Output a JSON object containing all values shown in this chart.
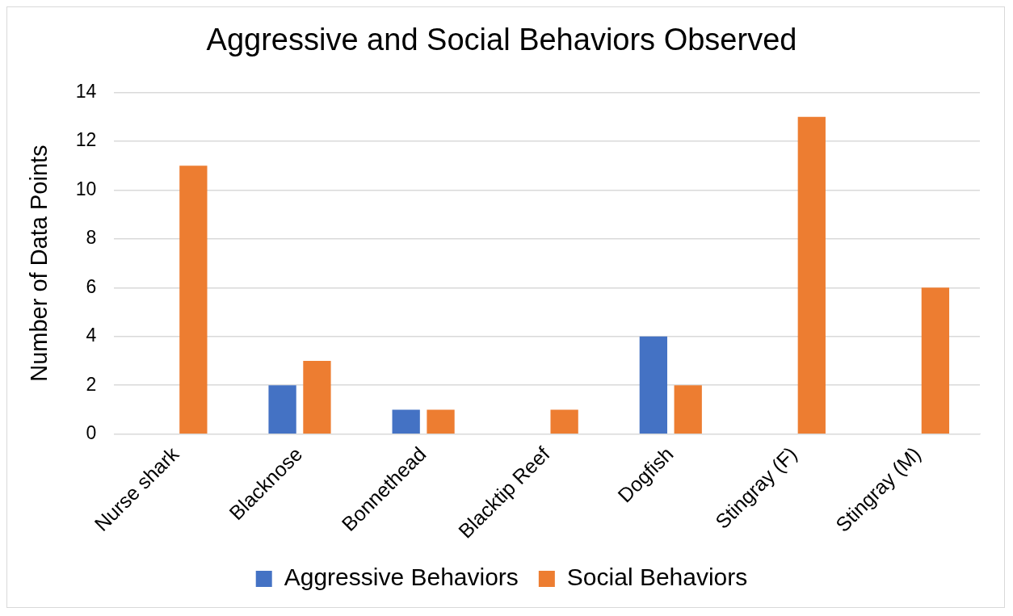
{
  "chart_data": {
    "type": "bar",
    "title": "Aggressive and Social Behaviors Observed",
    "ylabel": "Number of Data Points",
    "categories": [
      "Nurse shark",
      "Blacknose",
      "Bonnethead",
      "Blacktip Reef",
      "Dogfish",
      "Stingray (F)",
      "Stingray (M)"
    ],
    "series": [
      {
        "name": "Aggressive Behaviors",
        "color": "#4472c4",
        "values": [
          0,
          2,
          1,
          0,
          4,
          0,
          0
        ]
      },
      {
        "name": "Social Behaviors",
        "color": "#ed7d31",
        "values": [
          11,
          3,
          1,
          1,
          2,
          13,
          6
        ]
      }
    ],
    "ylim": [
      0,
      14
    ],
    "yticks": [
      0,
      2,
      4,
      6,
      8,
      10,
      12,
      14
    ],
    "grid": "y",
    "legend": "bottom"
  }
}
